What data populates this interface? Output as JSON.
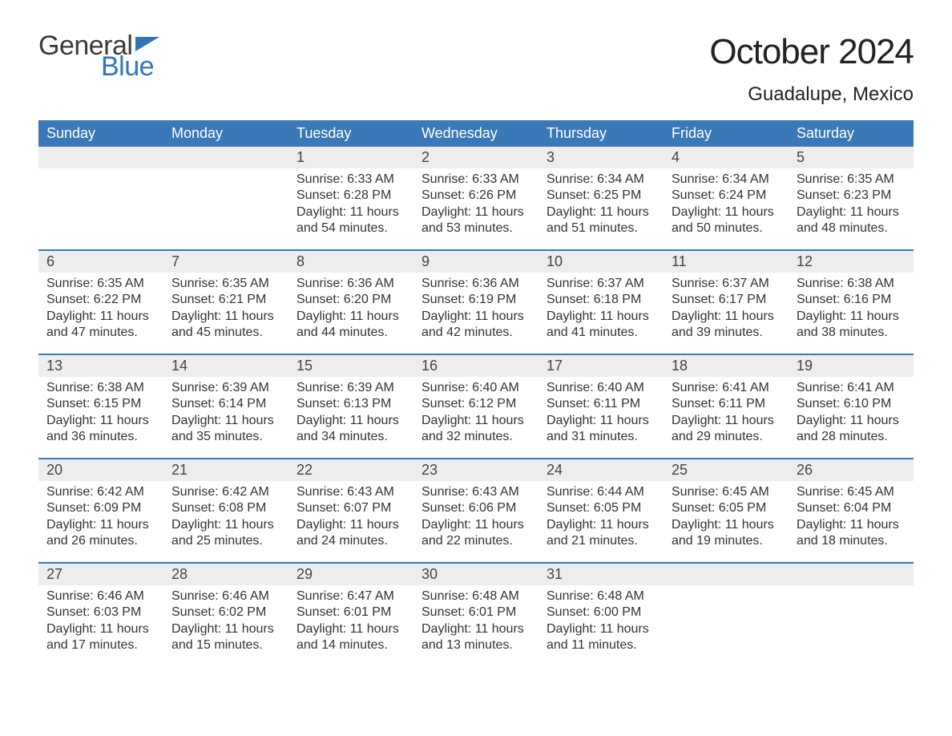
{
  "brand": {
    "word1": "General",
    "word2": "Blue"
  },
  "title": "October 2024",
  "location": "Guadalupe, Mexico",
  "colors": {
    "header_bg": "#3b78b8",
    "header_text": "#ffffff",
    "daynum_bg": "#ededed",
    "week_divider": "#3b78b8",
    "body_text": "#333333",
    "title_text": "#222222",
    "logo_blue": "#2f76b8",
    "logo_gray": "#3a3a3a",
    "background": "#ffffff"
  },
  "typography": {
    "month_title_fontsize": 44,
    "location_fontsize": 24,
    "dayheader_fontsize": 18,
    "daynum_fontsize": 18,
    "cell_fontsize": 16,
    "logo_fontsize": 34
  },
  "day_names": [
    "Sunday",
    "Monday",
    "Tuesday",
    "Wednesday",
    "Thursday",
    "Friday",
    "Saturday"
  ],
  "weeks": [
    [
      {
        "empty": true
      },
      {
        "empty": true
      },
      {
        "day": "1",
        "sunrise": "Sunrise: 6:33 AM",
        "sunset": "Sunset: 6:28 PM",
        "d1": "Daylight: 11 hours",
        "d2": "and 54 minutes."
      },
      {
        "day": "2",
        "sunrise": "Sunrise: 6:33 AM",
        "sunset": "Sunset: 6:26 PM",
        "d1": "Daylight: 11 hours",
        "d2": "and 53 minutes."
      },
      {
        "day": "3",
        "sunrise": "Sunrise: 6:34 AM",
        "sunset": "Sunset: 6:25 PM",
        "d1": "Daylight: 11 hours",
        "d2": "and 51 minutes."
      },
      {
        "day": "4",
        "sunrise": "Sunrise: 6:34 AM",
        "sunset": "Sunset: 6:24 PM",
        "d1": "Daylight: 11 hours",
        "d2": "and 50 minutes."
      },
      {
        "day": "5",
        "sunrise": "Sunrise: 6:35 AM",
        "sunset": "Sunset: 6:23 PM",
        "d1": "Daylight: 11 hours",
        "d2": "and 48 minutes."
      }
    ],
    [
      {
        "day": "6",
        "sunrise": "Sunrise: 6:35 AM",
        "sunset": "Sunset: 6:22 PM",
        "d1": "Daylight: 11 hours",
        "d2": "and 47 minutes."
      },
      {
        "day": "7",
        "sunrise": "Sunrise: 6:35 AM",
        "sunset": "Sunset: 6:21 PM",
        "d1": "Daylight: 11 hours",
        "d2": "and 45 minutes."
      },
      {
        "day": "8",
        "sunrise": "Sunrise: 6:36 AM",
        "sunset": "Sunset: 6:20 PM",
        "d1": "Daylight: 11 hours",
        "d2": "and 44 minutes."
      },
      {
        "day": "9",
        "sunrise": "Sunrise: 6:36 AM",
        "sunset": "Sunset: 6:19 PM",
        "d1": "Daylight: 11 hours",
        "d2": "and 42 minutes."
      },
      {
        "day": "10",
        "sunrise": "Sunrise: 6:37 AM",
        "sunset": "Sunset: 6:18 PM",
        "d1": "Daylight: 11 hours",
        "d2": "and 41 minutes."
      },
      {
        "day": "11",
        "sunrise": "Sunrise: 6:37 AM",
        "sunset": "Sunset: 6:17 PM",
        "d1": "Daylight: 11 hours",
        "d2": "and 39 minutes."
      },
      {
        "day": "12",
        "sunrise": "Sunrise: 6:38 AM",
        "sunset": "Sunset: 6:16 PM",
        "d1": "Daylight: 11 hours",
        "d2": "and 38 minutes."
      }
    ],
    [
      {
        "day": "13",
        "sunrise": "Sunrise: 6:38 AM",
        "sunset": "Sunset: 6:15 PM",
        "d1": "Daylight: 11 hours",
        "d2": "and 36 minutes."
      },
      {
        "day": "14",
        "sunrise": "Sunrise: 6:39 AM",
        "sunset": "Sunset: 6:14 PM",
        "d1": "Daylight: 11 hours",
        "d2": "and 35 minutes."
      },
      {
        "day": "15",
        "sunrise": "Sunrise: 6:39 AM",
        "sunset": "Sunset: 6:13 PM",
        "d1": "Daylight: 11 hours",
        "d2": "and 34 minutes."
      },
      {
        "day": "16",
        "sunrise": "Sunrise: 6:40 AM",
        "sunset": "Sunset: 6:12 PM",
        "d1": "Daylight: 11 hours",
        "d2": "and 32 minutes."
      },
      {
        "day": "17",
        "sunrise": "Sunrise: 6:40 AM",
        "sunset": "Sunset: 6:11 PM",
        "d1": "Daylight: 11 hours",
        "d2": "and 31 minutes."
      },
      {
        "day": "18",
        "sunrise": "Sunrise: 6:41 AM",
        "sunset": "Sunset: 6:11 PM",
        "d1": "Daylight: 11 hours",
        "d2": "and 29 minutes."
      },
      {
        "day": "19",
        "sunrise": "Sunrise: 6:41 AM",
        "sunset": "Sunset: 6:10 PM",
        "d1": "Daylight: 11 hours",
        "d2": "and 28 minutes."
      }
    ],
    [
      {
        "day": "20",
        "sunrise": "Sunrise: 6:42 AM",
        "sunset": "Sunset: 6:09 PM",
        "d1": "Daylight: 11 hours",
        "d2": "and 26 minutes."
      },
      {
        "day": "21",
        "sunrise": "Sunrise: 6:42 AM",
        "sunset": "Sunset: 6:08 PM",
        "d1": "Daylight: 11 hours",
        "d2": "and 25 minutes."
      },
      {
        "day": "22",
        "sunrise": "Sunrise: 6:43 AM",
        "sunset": "Sunset: 6:07 PM",
        "d1": "Daylight: 11 hours",
        "d2": "and 24 minutes."
      },
      {
        "day": "23",
        "sunrise": "Sunrise: 6:43 AM",
        "sunset": "Sunset: 6:06 PM",
        "d1": "Daylight: 11 hours",
        "d2": "and 22 minutes."
      },
      {
        "day": "24",
        "sunrise": "Sunrise: 6:44 AM",
        "sunset": "Sunset: 6:05 PM",
        "d1": "Daylight: 11 hours",
        "d2": "and 21 minutes."
      },
      {
        "day": "25",
        "sunrise": "Sunrise: 6:45 AM",
        "sunset": "Sunset: 6:05 PM",
        "d1": "Daylight: 11 hours",
        "d2": "and 19 minutes."
      },
      {
        "day": "26",
        "sunrise": "Sunrise: 6:45 AM",
        "sunset": "Sunset: 6:04 PM",
        "d1": "Daylight: 11 hours",
        "d2": "and 18 minutes."
      }
    ],
    [
      {
        "day": "27",
        "sunrise": "Sunrise: 6:46 AM",
        "sunset": "Sunset: 6:03 PM",
        "d1": "Daylight: 11 hours",
        "d2": "and 17 minutes."
      },
      {
        "day": "28",
        "sunrise": "Sunrise: 6:46 AM",
        "sunset": "Sunset: 6:02 PM",
        "d1": "Daylight: 11 hours",
        "d2": "and 15 minutes."
      },
      {
        "day": "29",
        "sunrise": "Sunrise: 6:47 AM",
        "sunset": "Sunset: 6:01 PM",
        "d1": "Daylight: 11 hours",
        "d2": "and 14 minutes."
      },
      {
        "day": "30",
        "sunrise": "Sunrise: 6:48 AM",
        "sunset": "Sunset: 6:01 PM",
        "d1": "Daylight: 11 hours",
        "d2": "and 13 minutes."
      },
      {
        "day": "31",
        "sunrise": "Sunrise: 6:48 AM",
        "sunset": "Sunset: 6:00 PM",
        "d1": "Daylight: 11 hours",
        "d2": "and 11 minutes."
      },
      {
        "empty": true
      },
      {
        "empty": true
      }
    ]
  ]
}
